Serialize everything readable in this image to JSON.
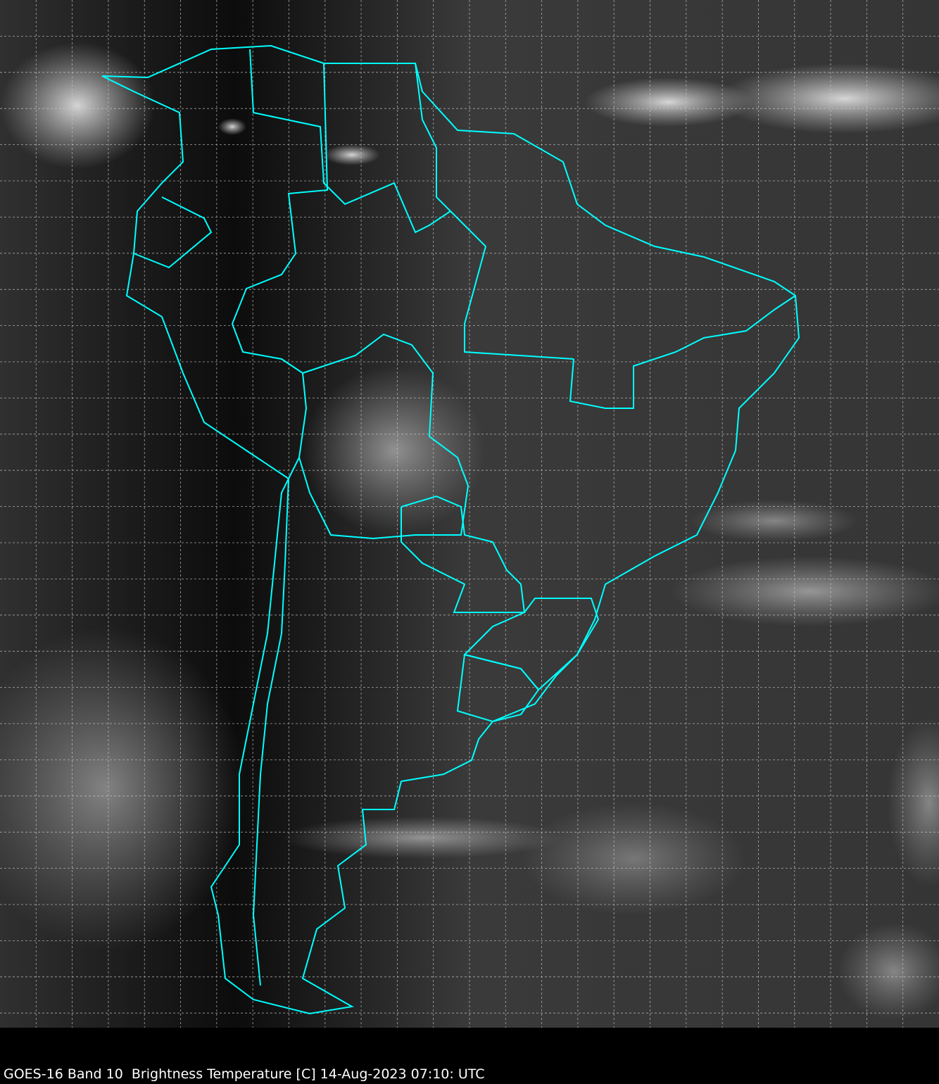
{
  "caption": "GOES-16 Band 10  Brightness Temperature [C] 14-Aug-2023 07:10: UTC",
  "colors": {
    "background": "#000000",
    "imagery_base": "#3a3a3a",
    "borders": "#00ffff",
    "gridlines": "#c8c8c8",
    "caption_text": "#ffffff"
  }
}
